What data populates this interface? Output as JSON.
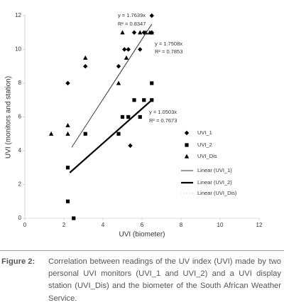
{
  "chart_data": {
    "type": "scatter",
    "xlabel": "UVI (biometer)",
    "ylabel": "UVI (monitors and station)",
    "xlim": [
      0,
      12
    ],
    "ylim": [
      0,
      12
    ],
    "xticks": [
      0,
      2,
      4,
      6,
      8,
      10,
      12
    ],
    "yticks": [
      0,
      2,
      4,
      6,
      8,
      10,
      12
    ],
    "series": [
      {
        "name": "UVI_1",
        "type": "scatter",
        "marker": "diamond",
        "color": "#000000",
        "x": [
          2.2,
          3.1,
          4.8,
          5.1,
          5.3,
          5.9,
          5.6,
          6.1,
          6.5,
          6.5,
          5.4
        ],
        "values": [
          8,
          9,
          9,
          10,
          10,
          10,
          11,
          11,
          11,
          12,
          4.3
        ]
      },
      {
        "name": "UVI_2",
        "type": "scatter",
        "marker": "square",
        "color": "#000000",
        "x": [
          2.5,
          2.2,
          2.2,
          3.1,
          4.8,
          5.0,
          5.3,
          5.6,
          5.9,
          6.1,
          6.5,
          6.5
        ],
        "values": [
          0,
          1,
          3,
          5,
          5,
          6,
          6,
          7,
          6,
          7,
          7,
          8
        ]
      },
      {
        "name": "UVI_Dis",
        "type": "scatter",
        "marker": "triangle",
        "color": "#000000",
        "x": [
          1.35,
          2.2,
          2.2,
          3.1,
          4.8,
          5.0,
          5.2,
          5.9,
          6.2,
          6.4,
          6.5
        ],
        "values": [
          5,
          5,
          5.5,
          9.5,
          8,
          11,
          9.5,
          11,
          11,
          11,
          11
        ]
      },
      {
        "name": "Linear (UVI_1)",
        "type": "line",
        "color": "#333333",
        "width": 1,
        "x": [
          2.4,
          6.5
        ],
        "values": [
          4.2,
          11.5
        ]
      },
      {
        "name": "Linear (UVI_2)",
        "type": "line",
        "color": "#000000",
        "width": 2.2,
        "x": [
          2.3,
          6.5
        ],
        "values": [
          2.7,
          7.0
        ]
      },
      {
        "name": "Linear (UVI_Dis)",
        "type": "line",
        "color": "#888888",
        "width": 0.6,
        "dash": "1,3",
        "x": [
          2.4,
          6.5
        ],
        "values": [
          4.2,
          11.4
        ]
      }
    ],
    "annotations": [
      "y = 1.7639x",
      "R² = 0.8347",
      "y = 1.7508x",
      "R² = 0.7853",
      "y = 1.0503x",
      "R² = 0.7673"
    ]
  },
  "caption": {
    "label": "Figure 2:",
    "text": "Correlation between readings of the UV index (UVI) made by two personal UVI monitors (UVI_1 and UVI_2) and a UVI display station (UVI_Dis) and the biometer of the South African Weather Service."
  }
}
